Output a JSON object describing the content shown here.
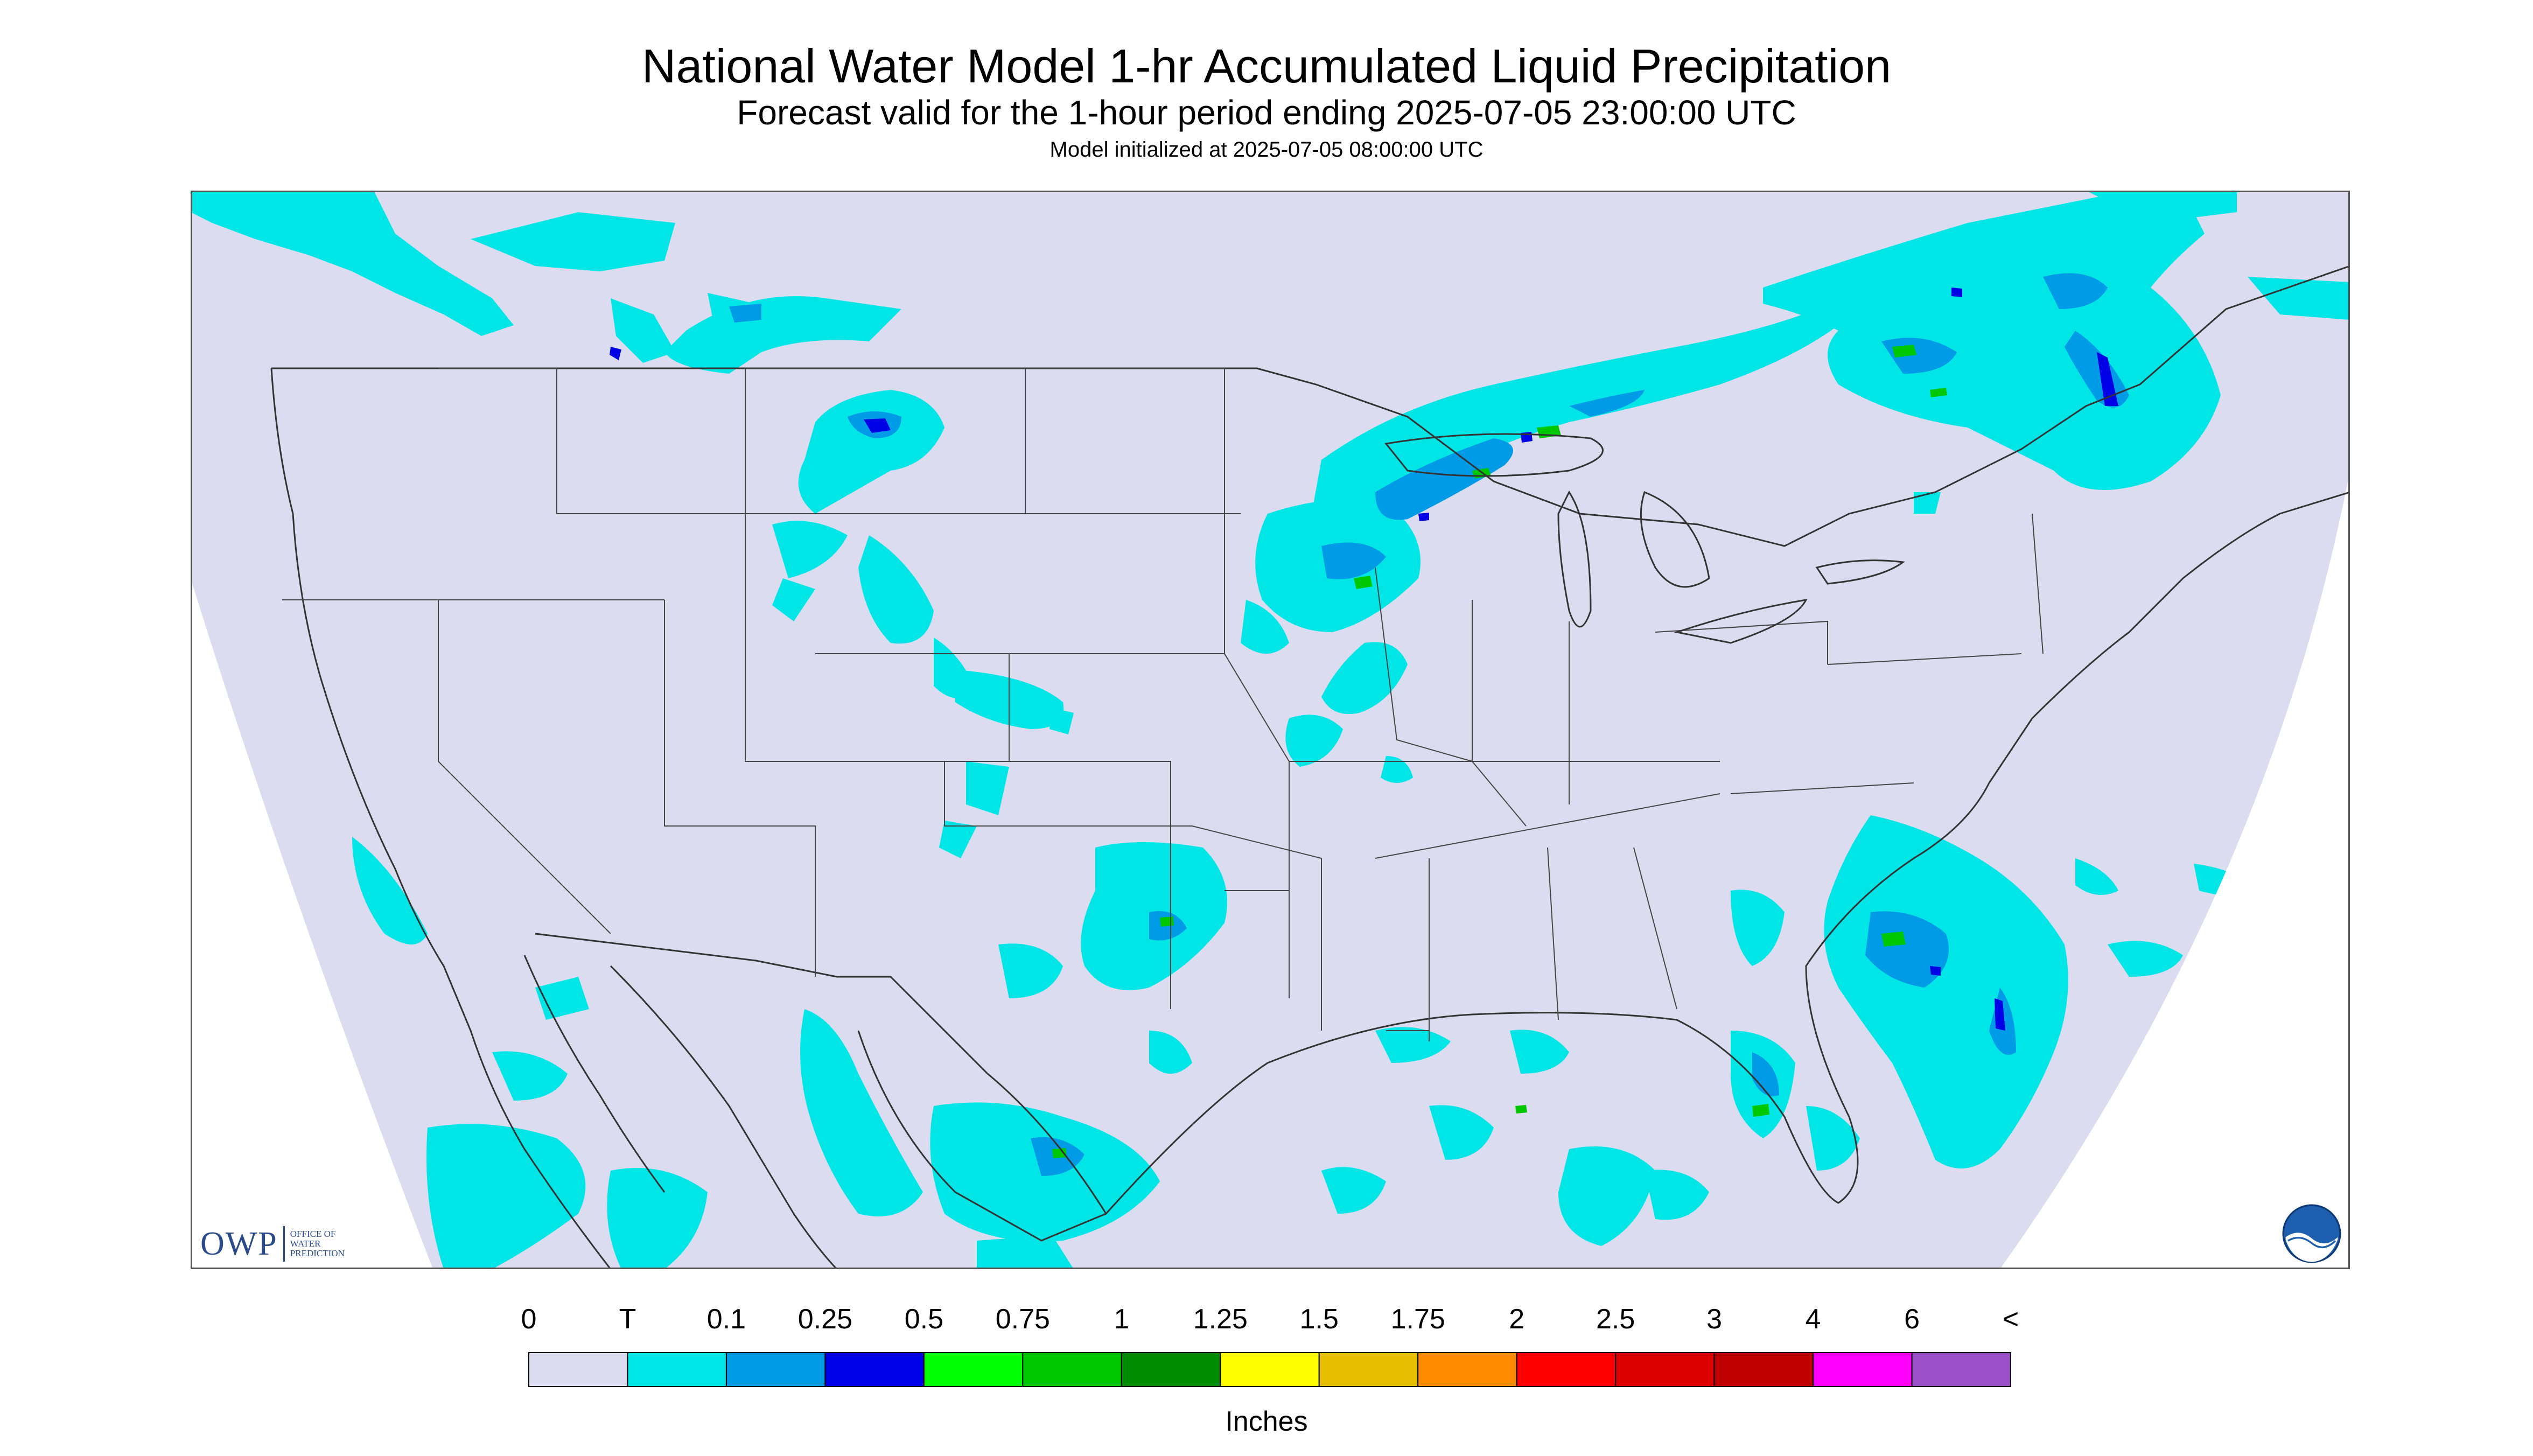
{
  "header": {
    "title": "National Water Model 1-hr Accumulated Liquid Precipitation",
    "subtitle": "Forecast valid for the 1-hour period ending 2025-07-05 23:00:00 UTC",
    "init": "Model initialized at 2025-07-05 08:00:00 UTC"
  },
  "logos": {
    "owp_main": "OWP",
    "owp_sub": [
      "OFFICE OF",
      "WATER",
      "PREDICTION"
    ],
    "noaa_icon": "noaa-logo-icon"
  },
  "legend": {
    "units": "Inches",
    "labels": [
      "0",
      "T",
      "0.1",
      "0.25",
      "0.5",
      "0.75",
      "1",
      "1.25",
      "1.5",
      "1.75",
      "2",
      "2.5",
      "3",
      "4",
      "6",
      "<"
    ],
    "colors": [
      "#dcdcf0",
      "#00e6e6",
      "#009be6",
      "#0000e6",
      "#00ff00",
      "#00c800",
      "#008c00",
      "#ffff00",
      "#e6be00",
      "#ff8c00",
      "#ff0000",
      "#dc0000",
      "#be0000",
      "#ff00ff",
      "#9a50c8"
    ]
  },
  "map": {
    "background_color": "#dcdcf0",
    "outside_color": "#ffffff",
    "boundary_color": "#333333",
    "precip_colors": {
      "trace": "#00e6e6",
      "light": "#009be6",
      "moderate": "#0000e6",
      "heavy": "#00c800"
    }
  }
}
